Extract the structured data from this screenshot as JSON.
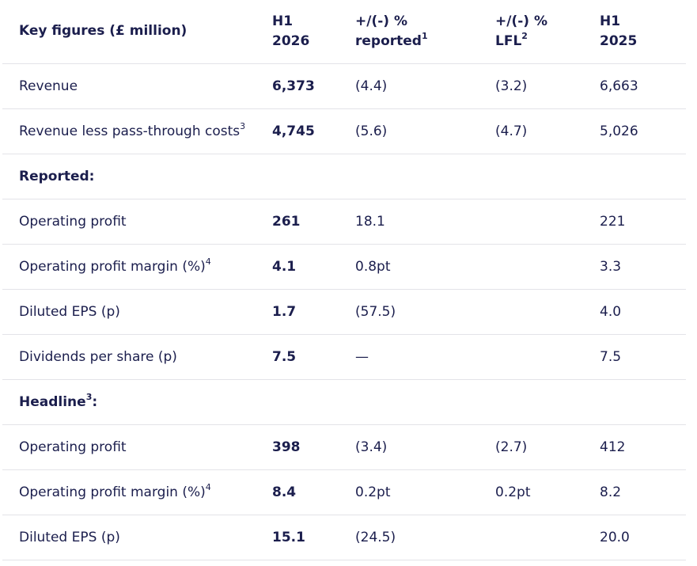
{
  "header": {
    "label": "Key figures (£ million)",
    "col_h1_2026": [
      "H1",
      "2026"
    ],
    "col_reported": [
      "+/(-) %",
      "reported"
    ],
    "col_reported_sup": "1",
    "col_lfl": [
      "+/(-) %",
      "LFL"
    ],
    "col_lfl_sup": "2",
    "col_h1_2025": [
      "H1",
      "2025"
    ]
  },
  "rows": [
    {
      "label": "Revenue",
      "sup": "",
      "h1_2026": "6,373",
      "reported": "(4.4)",
      "lfl": "(3.2)",
      "h1_2025": "6,663"
    },
    {
      "label": "Revenue less pass-through costs",
      "sup": "3",
      "h1_2026": "4,745",
      "reported": "(5.6)",
      "lfl": "(4.7)",
      "h1_2025": "5,026"
    },
    {
      "label": "Reported:",
      "sup": "",
      "section": true
    },
    {
      "label": "Operating profit",
      "sup": "",
      "h1_2026": "261",
      "reported": "18.1",
      "lfl": "",
      "h1_2025": "221"
    },
    {
      "label": "Operating profit margin (%)",
      "sup": "4",
      "h1_2026": "4.1",
      "reported": "0.8pt",
      "lfl": "",
      "h1_2025": "3.3"
    },
    {
      "label": "Diluted EPS (p)",
      "sup": "",
      "h1_2026": "1.7",
      "reported": "(57.5)",
      "lfl": "",
      "h1_2025": "4.0"
    },
    {
      "label": "Dividends per share (p)",
      "sup": "",
      "h1_2026": "7.5",
      "reported": "—",
      "lfl": "",
      "h1_2025": "7.5"
    },
    {
      "label": "Headline",
      "sup": "3",
      "suffix": ":",
      "section": true
    },
    {
      "label": "Operating profit",
      "sup": "",
      "h1_2026": "398",
      "reported": "(3.4)",
      "lfl": "(2.7)",
      "h1_2025": "412"
    },
    {
      "label": "Operating profit margin (%)",
      "sup": "4",
      "h1_2026": "8.4",
      "reported": "0.2pt",
      "lfl": "0.2pt",
      "h1_2025": "8.2"
    },
    {
      "label": "Diluted EPS (p)",
      "sup": "",
      "h1_2026": "15.1",
      "reported": "(24.5)",
      "lfl": "",
      "h1_2025": "20.0"
    }
  ]
}
